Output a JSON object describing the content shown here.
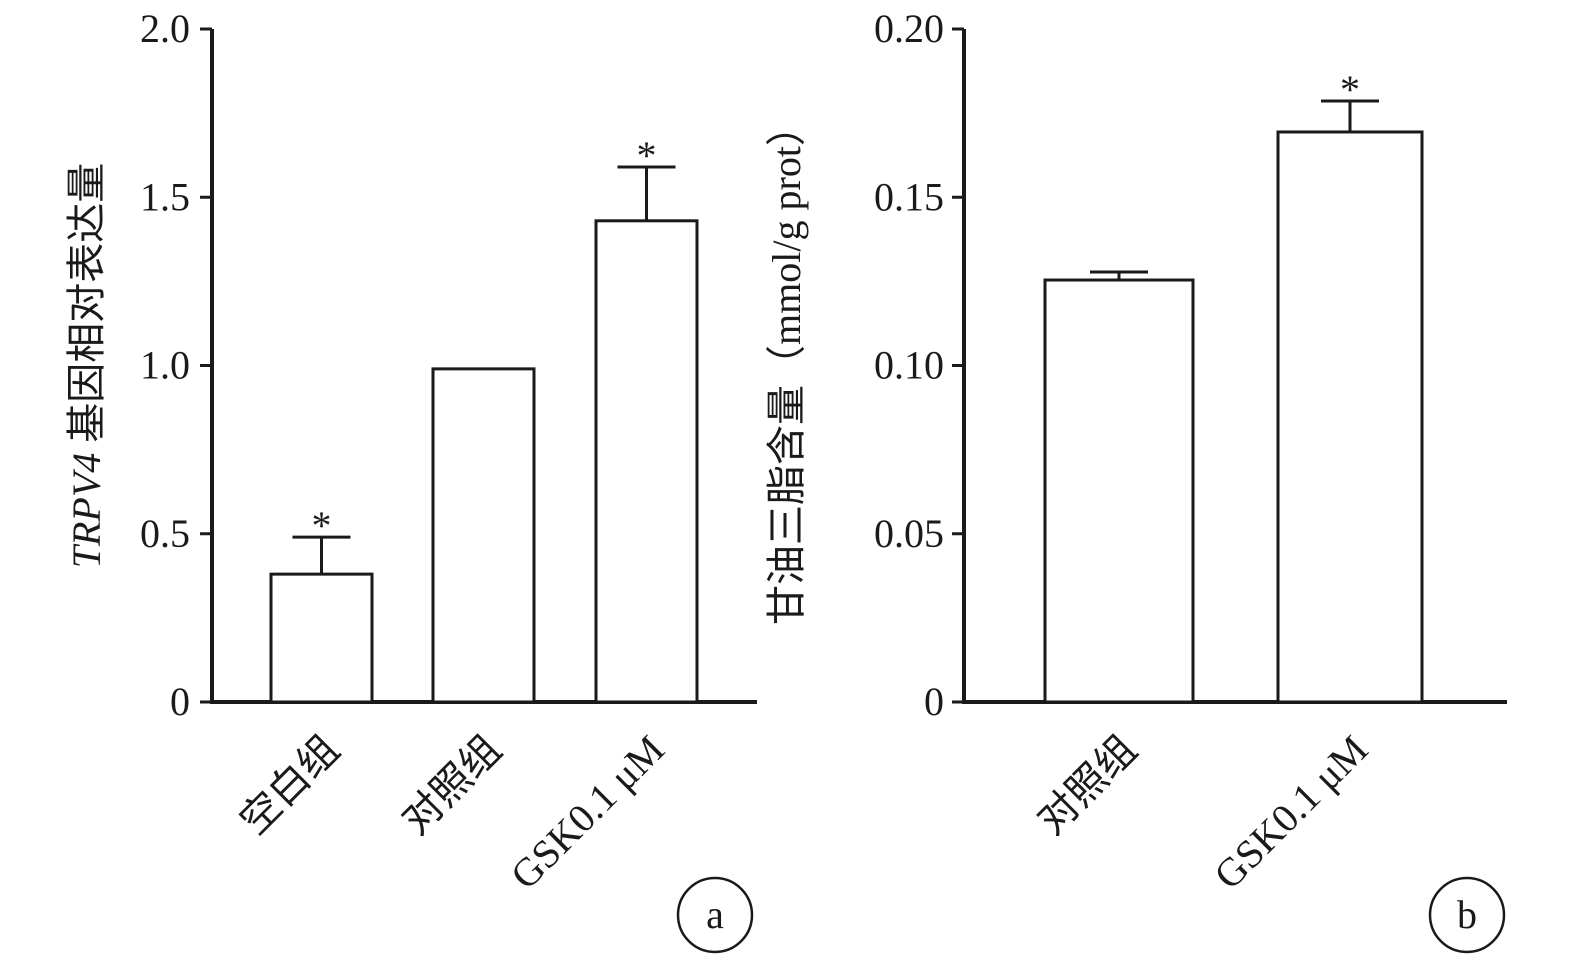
{
  "chart_data": [
    {
      "type": "bar",
      "panel_label": "a",
      "title": "",
      "ylabel_italic": "TRPV4",
      "ylabel": "基因相对表达量",
      "xlabel": "",
      "categories": [
        "空白组",
        "对照组",
        "GSK0.1 μM"
      ],
      "values": [
        0.38,
        0.99,
        1.43
      ],
      "error_upper": [
        0.49,
        null,
        1.59
      ],
      "significance": [
        "*",
        "",
        "*"
      ],
      "ylim": [
        0,
        2.0
      ],
      "yticks": [
        "0",
        "0.5",
        "1.0",
        "1.5",
        "2.0"
      ],
      "ytick_values": [
        0,
        0.5,
        1.0,
        1.5,
        2.0
      ],
      "grid": false
    },
    {
      "type": "bar",
      "panel_label": "b",
      "title": "",
      "ylabel": "甘油三脂含量（mmol/g prot）",
      "xlabel": "",
      "categories": [
        "对照组",
        "GSK0.1 μM"
      ],
      "values": [
        0.1254,
        0.1694
      ],
      "error_upper": [
        0.1278,
        0.1786
      ],
      "significance": [
        "",
        "*"
      ],
      "ylim": [
        0,
        0.2
      ],
      "yticks": [
        "0",
        "0.05",
        "0.10",
        "0.15",
        "0.20"
      ],
      "ytick_values": [
        0,
        0.05,
        0.1,
        0.15,
        0.2
      ],
      "grid": false
    }
  ]
}
